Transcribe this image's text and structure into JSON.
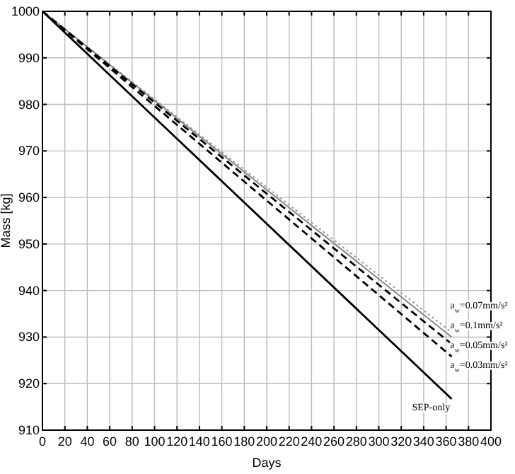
{
  "chart_data": {
    "type": "line",
    "xlabel": "Days",
    "ylabel": "Mass [kg]",
    "xlim": [
      0,
      400
    ],
    "xticks": [
      0,
      20,
      40,
      60,
      80,
      100,
      120,
      140,
      160,
      180,
      200,
      220,
      240,
      260,
      280,
      300,
      320,
      340,
      360,
      380,
      400
    ],
    "ylim": [
      910,
      1000
    ],
    "yticks": [
      910,
      920,
      930,
      940,
      950,
      960,
      970,
      980,
      990,
      1000
    ],
    "grid": true,
    "x": [
      0,
      365
    ],
    "series": [
      {
        "values": [
          1000,
          931
        ],
        "color": "#999999",
        "line_style": "dotted"
      },
      {
        "values": [
          1000,
          930
        ],
        "color": "#888888",
        "line_style": "solid"
      },
      {
        "values": [
          1000,
          928.5
        ],
        "color": "#000000",
        "line_style": "dashed"
      },
      {
        "values": [
          1000,
          925.8
        ],
        "color": "#000000",
        "line_style": "dashed"
      },
      {
        "values": [
          1000,
          916.7
        ],
        "color": "#000000",
        "line_style": "solid"
      }
    ],
    "annotations": [
      "a$_{w}$=0.07mm/s²",
      "a$_{w}$=0.1mm/s²",
      "a$_{w}$=0.05mm/s²",
      "a$_{w}$=0.03mm/s²",
      "SEP-only"
    ]
  }
}
